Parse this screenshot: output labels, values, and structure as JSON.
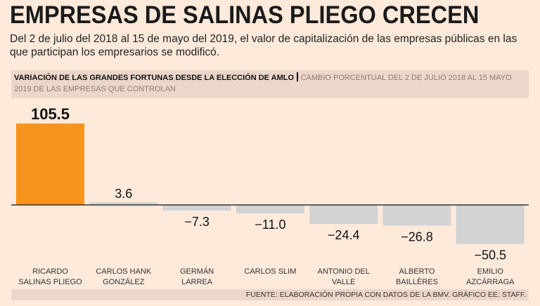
{
  "title": "EMPRESAS DE SALINAS PLIEGO CRECEN",
  "subtitle": "Del 2 de julio del 2018 al 15 de mayo del 2019, el valor de capitalización de las empresas públicas en las que participan los empresarios se modificó.",
  "band": {
    "bold": "VARIACIÓN DE LAS GRANDES FORTUNAS DESDE LA ELECCIÓN DE AMLO",
    "light": "CAMBIO PORCENTUAL DEL 2 DE JULIO 2018 AL 15 MAYO 2019 DE LAS EMPRESAS QUE CONTROLAN"
  },
  "source": "FUENTE: ELABORACIÓN PROPIA CON DATOS DE LA BMV. GRÁFICO EE: STAFF.",
  "chart_data": {
    "type": "bar",
    "title": "VARIACIÓN DE LAS GRANDES FORTUNAS DESDE LA ELECCIÓN DE AMLO",
    "ylabel": "Cambio porcentual",
    "categories": [
      [
        "RICARDO",
        "SALINAS PLIEGO"
      ],
      [
        "CARLOS HANK",
        "GONZÁLEZ"
      ],
      [
        "GERMÁN",
        "LARREA"
      ],
      [
        "CARLOS SLIM"
      ],
      [
        "ANTONIO DEL",
        "VALLE"
      ],
      [
        "ALBERTO",
        "BAILLÈRES"
      ],
      [
        "EMILIO",
        "AZCÁRRAGA"
      ]
    ],
    "values": [
      105.5,
      3.6,
      -7.3,
      -11.0,
      -24.4,
      -26.8,
      -50.5
    ],
    "value_labels": [
      "105.5",
      "3.6",
      "−7.3",
      "−11.0",
      "−24.4",
      "−26.8",
      "−50.5"
    ],
    "highlight_color": "#f7941d",
    "bar_color": "#d3d3d3",
    "grid": false
  }
}
